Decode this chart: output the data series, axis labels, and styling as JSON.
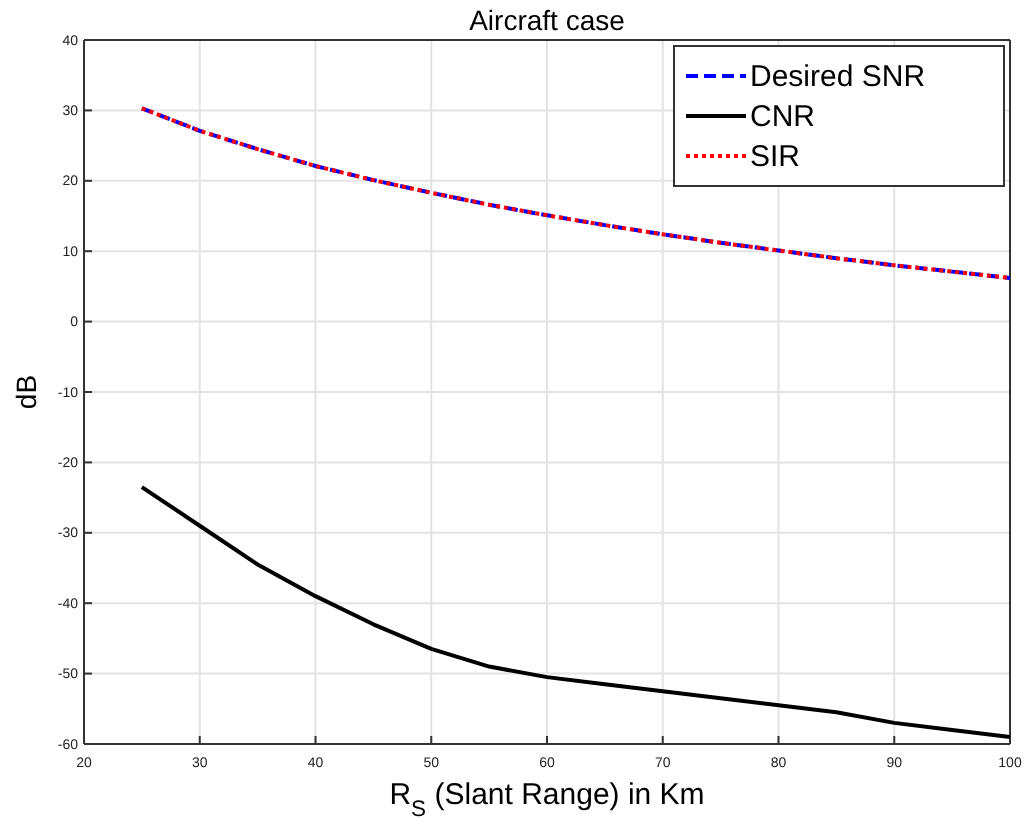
{
  "chart_data": {
    "type": "line",
    "title": "Aircraft case",
    "xlabel": "R$_{S}$ (Slant Range) in Km",
    "ylabel": "dB",
    "x": [
      25,
      30,
      35,
      40,
      45,
      50,
      55,
      60,
      65,
      70,
      75,
      80,
      85,
      90,
      95,
      100
    ],
    "series": [
      {
        "name": "Desired SNR",
        "color": "#0000ff",
        "line_style": "dashed",
        "values": [
          30.3,
          27.1,
          24.5,
          22.1,
          20.1,
          18.3,
          16.6,
          15.1,
          13.7,
          12.4,
          11.2,
          10.1,
          9.0,
          8.0,
          7.1,
          6.2
        ]
      },
      {
        "name": "CNR",
        "color": "#000000",
        "line_style": "solid",
        "values": [
          -23.5,
          -29,
          -34.5,
          -39,
          -43,
          -46.5,
          -49,
          -50.5,
          -51.5,
          -52.5,
          -53.5,
          -54.5,
          -55.5,
          -57,
          -58,
          -59
        ]
      },
      {
        "name": "SIR",
        "color": "#ff0000",
        "line_style": "dotted",
        "values": [
          30.3,
          27.1,
          24.5,
          22.1,
          20.1,
          18.3,
          16.6,
          15.1,
          13.7,
          12.4,
          11.2,
          10.1,
          9.0,
          8.0,
          7.1,
          6.2
        ]
      }
    ],
    "xlim": [
      20,
      100
    ],
    "xticks": [
      20,
      30,
      40,
      50,
      60,
      70,
      80,
      90,
      100
    ],
    "ylim": [
      -60,
      40
    ],
    "yticks": [
      -60,
      -50,
      -40,
      -30,
      -20,
      -10,
      0,
      10,
      20,
      30,
      40
    ],
    "grid": true,
    "legend": "top right"
  }
}
